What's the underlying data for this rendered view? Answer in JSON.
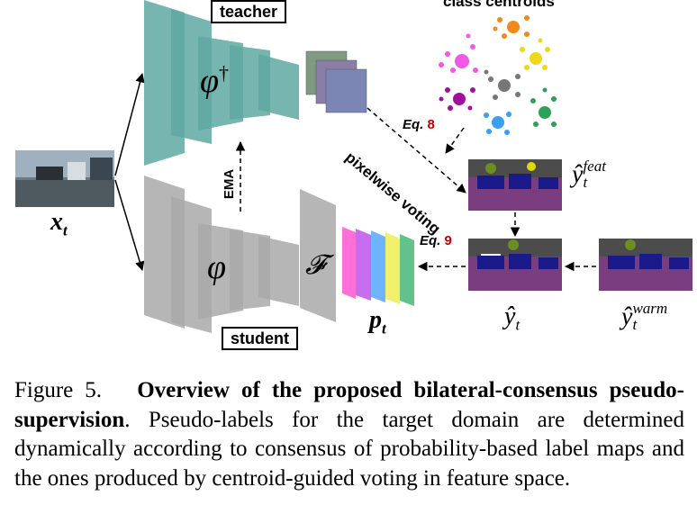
{
  "figure": {
    "labels": {
      "teacher": "teacher",
      "student": "student",
      "class_centroids": "class centroids",
      "ema": "EMA",
      "pixelwise_voting": "pixelwise voting",
      "eq8_prefix": "Eq.",
      "eq8_num": "8",
      "eq9_prefix": "Eq.",
      "eq9_num": "9",
      "phi_teacher": "φ",
      "phi_teacher_sup": "†",
      "phi_student": "φ",
      "F": "𝓕",
      "x_t": "x",
      "x_t_sub": "t",
      "p_t": "p",
      "p_t_sub": "t",
      "y_hat": "ŷ",
      "y_hat_sub": "t",
      "y_feat": "ŷ",
      "y_feat_sup": "feat",
      "y_feat_sub": "t",
      "y_warm": "ŷ",
      "y_warm_sup": "warm",
      "y_warm_sub": "t"
    },
    "colors": {
      "teacher_fill": "#5fa8a3",
      "student_fill": "#a9a9a9",
      "eq_number": "#c00000",
      "prob_maps": [
        "#ff6fd8",
        "#c86cf0",
        "#6fb4ff",
        "#f0f06a",
        "#63c28a"
      ],
      "centroid_clusters": [
        "#f058e8",
        "#a0109a",
        "#777777",
        "#f08a1a",
        "#f0d818",
        "#2fa05a",
        "#3a9ff0",
        "#f0f050"
      ]
    }
  },
  "caption": {
    "figure_number": "Figure 5.",
    "title": "Overview of the proposed bilateral-consensus pseudo-supervision",
    "body": ". Pseudo-labels for the target domain are determined dynamically according to consensus of probability-based label maps and the ones produced by centroid-guided voting in feature space."
  }
}
